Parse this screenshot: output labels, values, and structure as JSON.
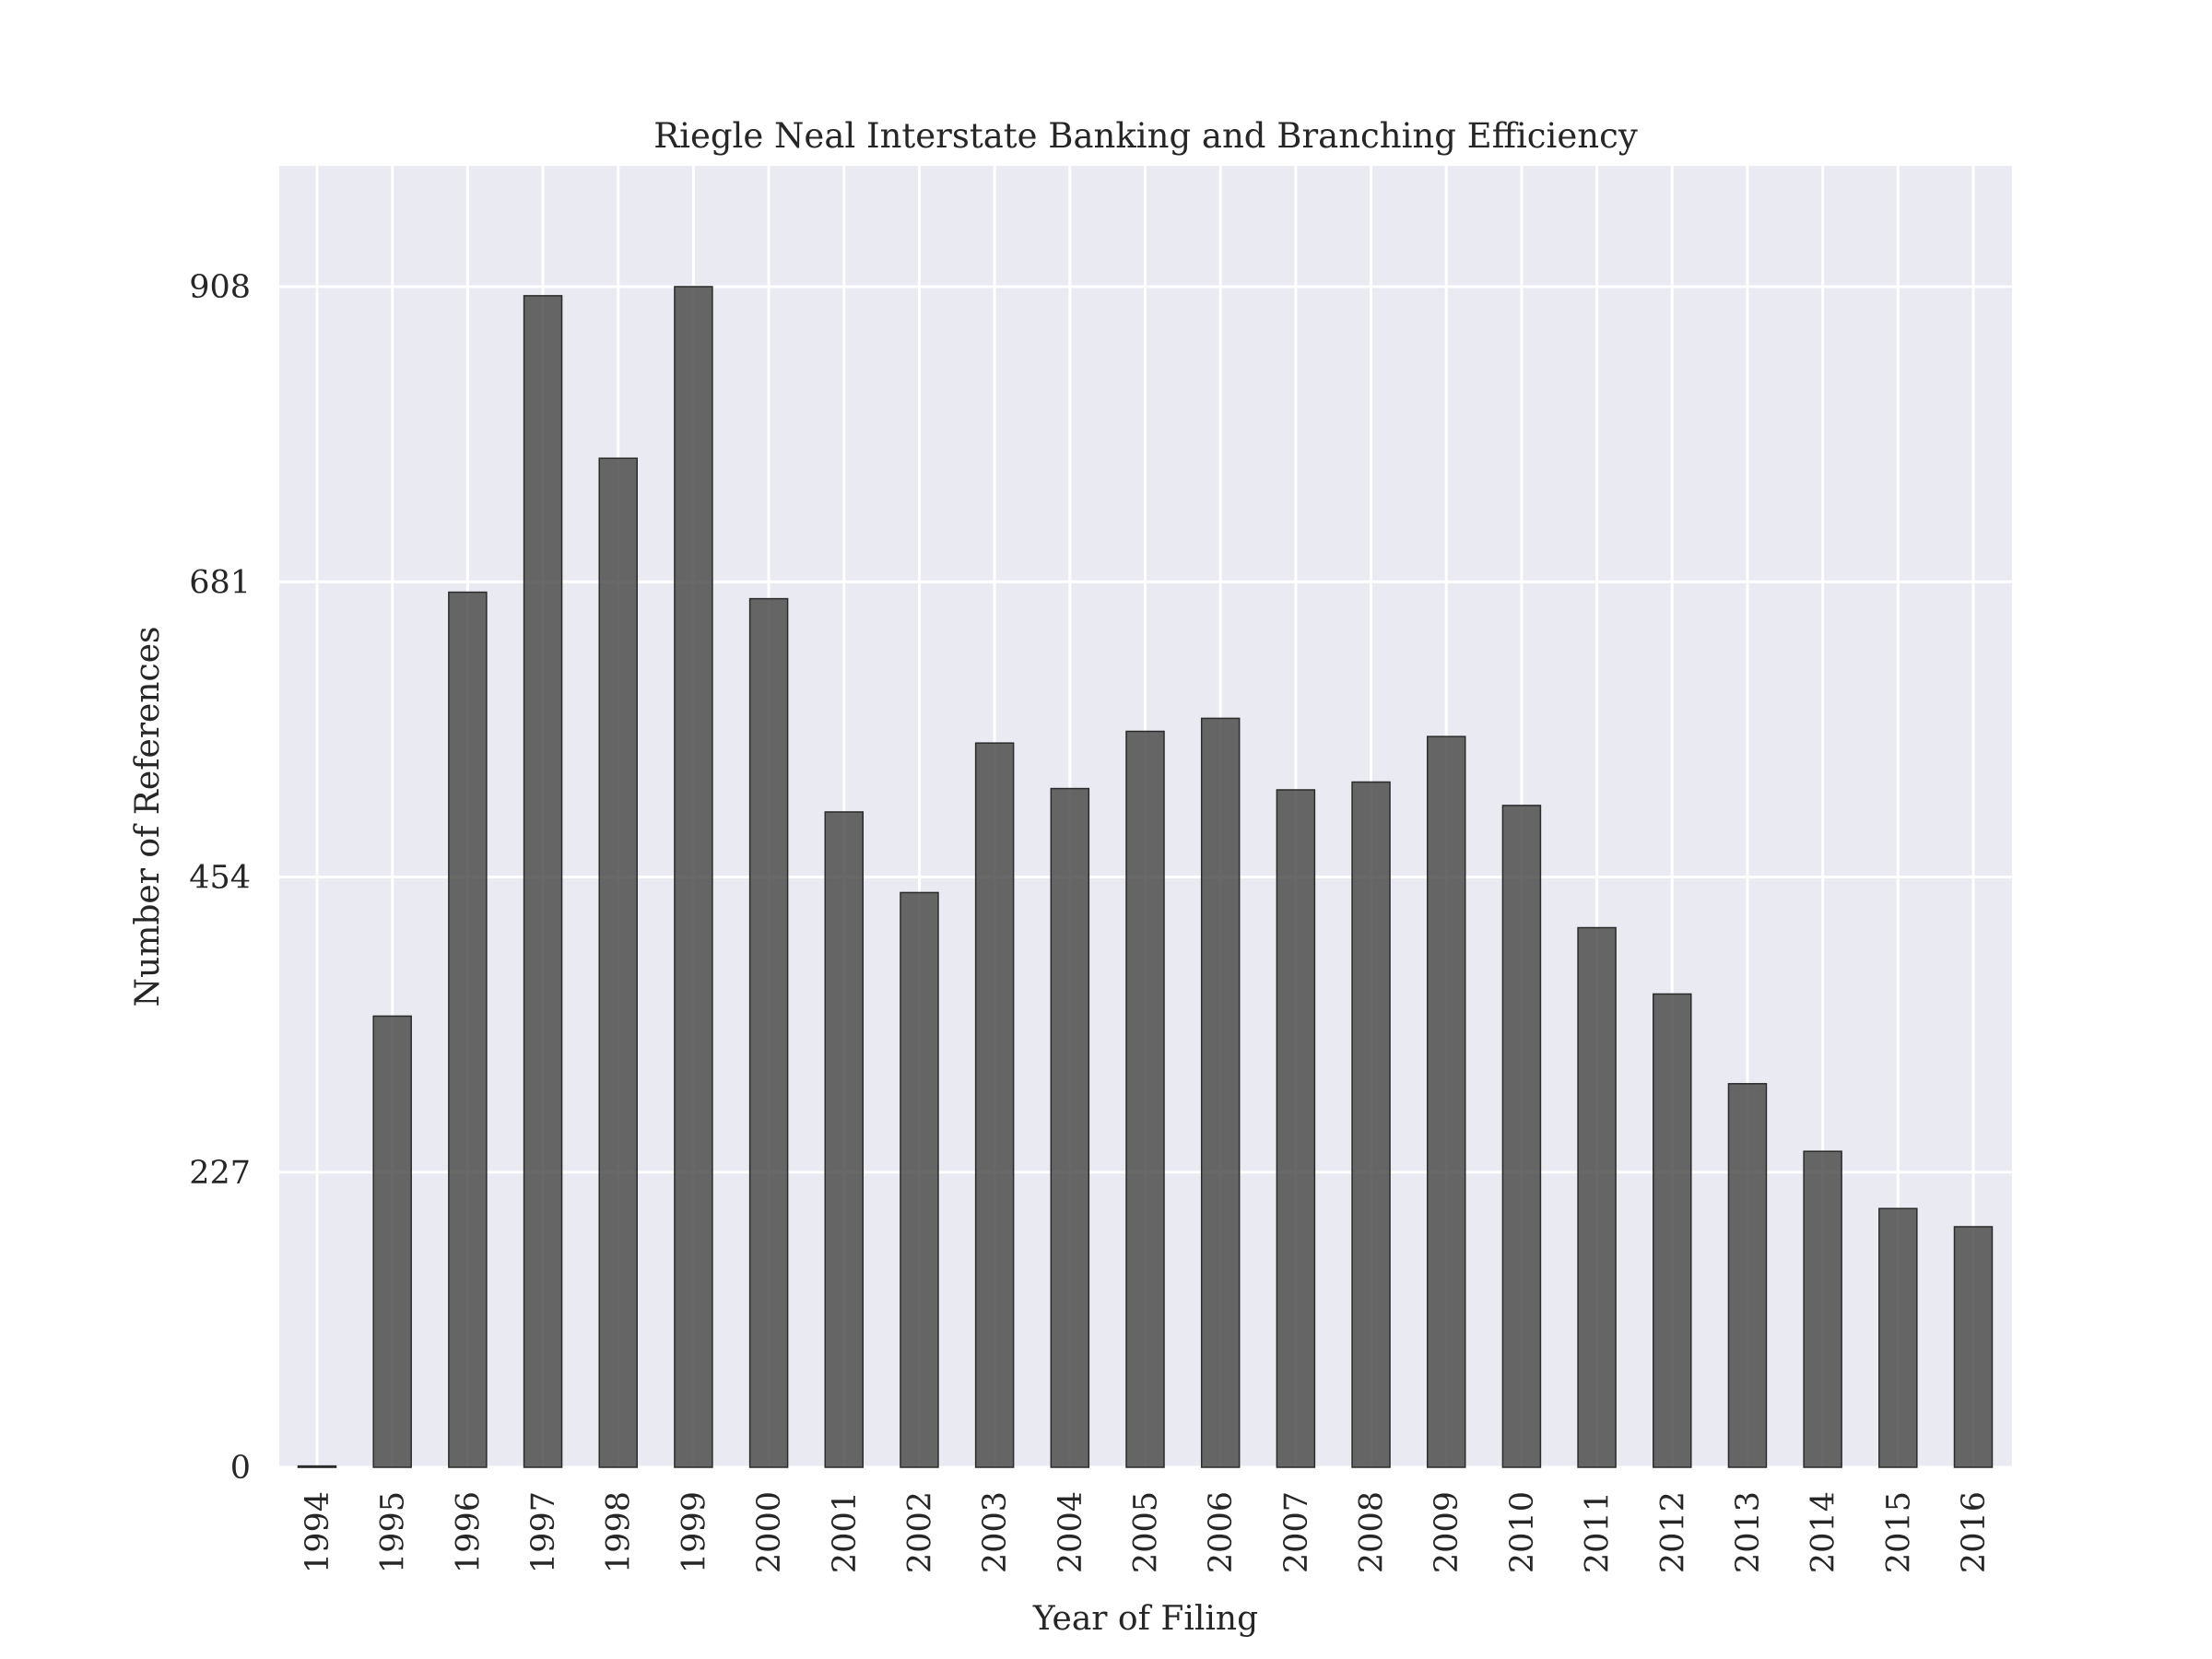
{
  "chart_data": {
    "type": "bar",
    "title": "Riegle Neal Interstate Banking and Branching Efficiency",
    "xlabel": "Year of Filing",
    "ylabel": "Number of References",
    "categories": [
      "1994",
      "1995",
      "1996",
      "1997",
      "1998",
      "1999",
      "2000",
      "2001",
      "2002",
      "2003",
      "2004",
      "2005",
      "2006",
      "2007",
      "2008",
      "2009",
      "2010",
      "2011",
      "2012",
      "2013",
      "2014",
      "2015",
      "2016"
    ],
    "values": [
      1,
      347,
      673,
      901,
      776,
      908,
      668,
      504,
      442,
      557,
      522,
      566,
      576,
      521,
      527,
      562,
      509,
      415,
      364,
      295,
      243,
      199,
      185
    ],
    "yticks": [
      0,
      227,
      454,
      681,
      908
    ],
    "ylim": [
      0,
      1000
    ],
    "grid": true,
    "legend": "none",
    "colors": {
      "bar": "#4d4d4d",
      "plot_background": "#eaeaf2",
      "grid": "#ffffff"
    }
  }
}
